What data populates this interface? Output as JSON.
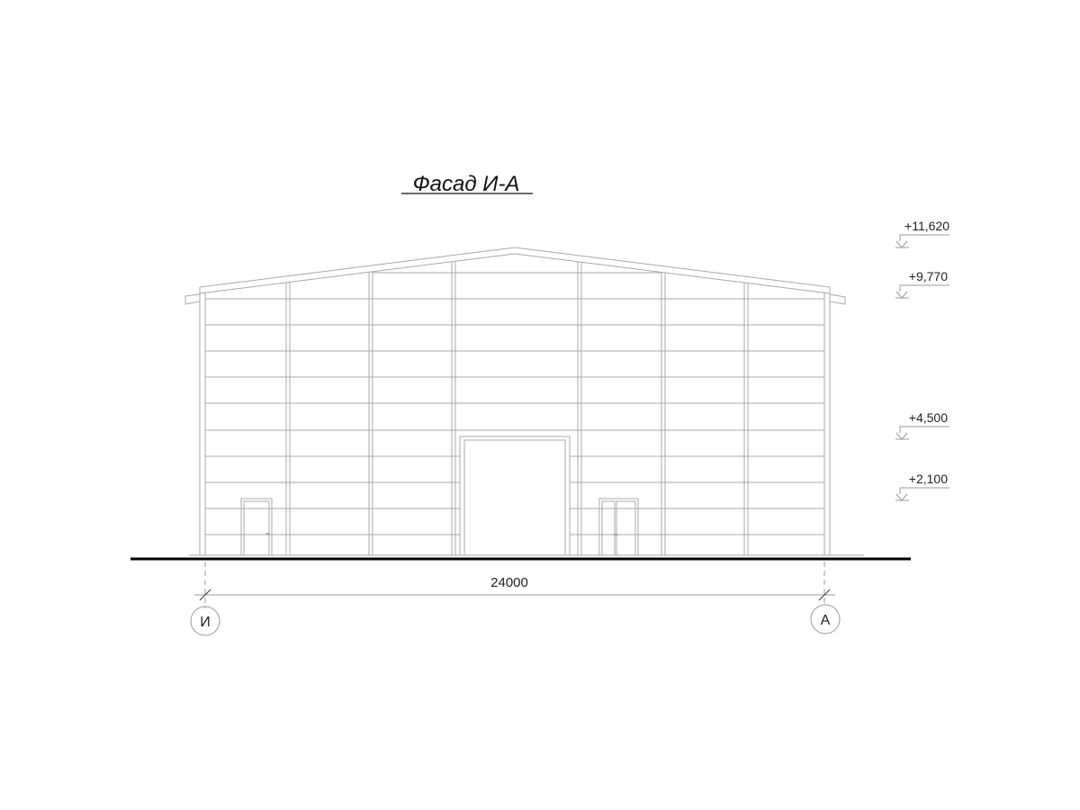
{
  "title": "Фасад И-А",
  "elevations": [
    "+11,620",
    "+9,770",
    "+4,500",
    "+2,100"
  ],
  "dimension": "24000",
  "axes": [
    "И",
    "А"
  ]
}
